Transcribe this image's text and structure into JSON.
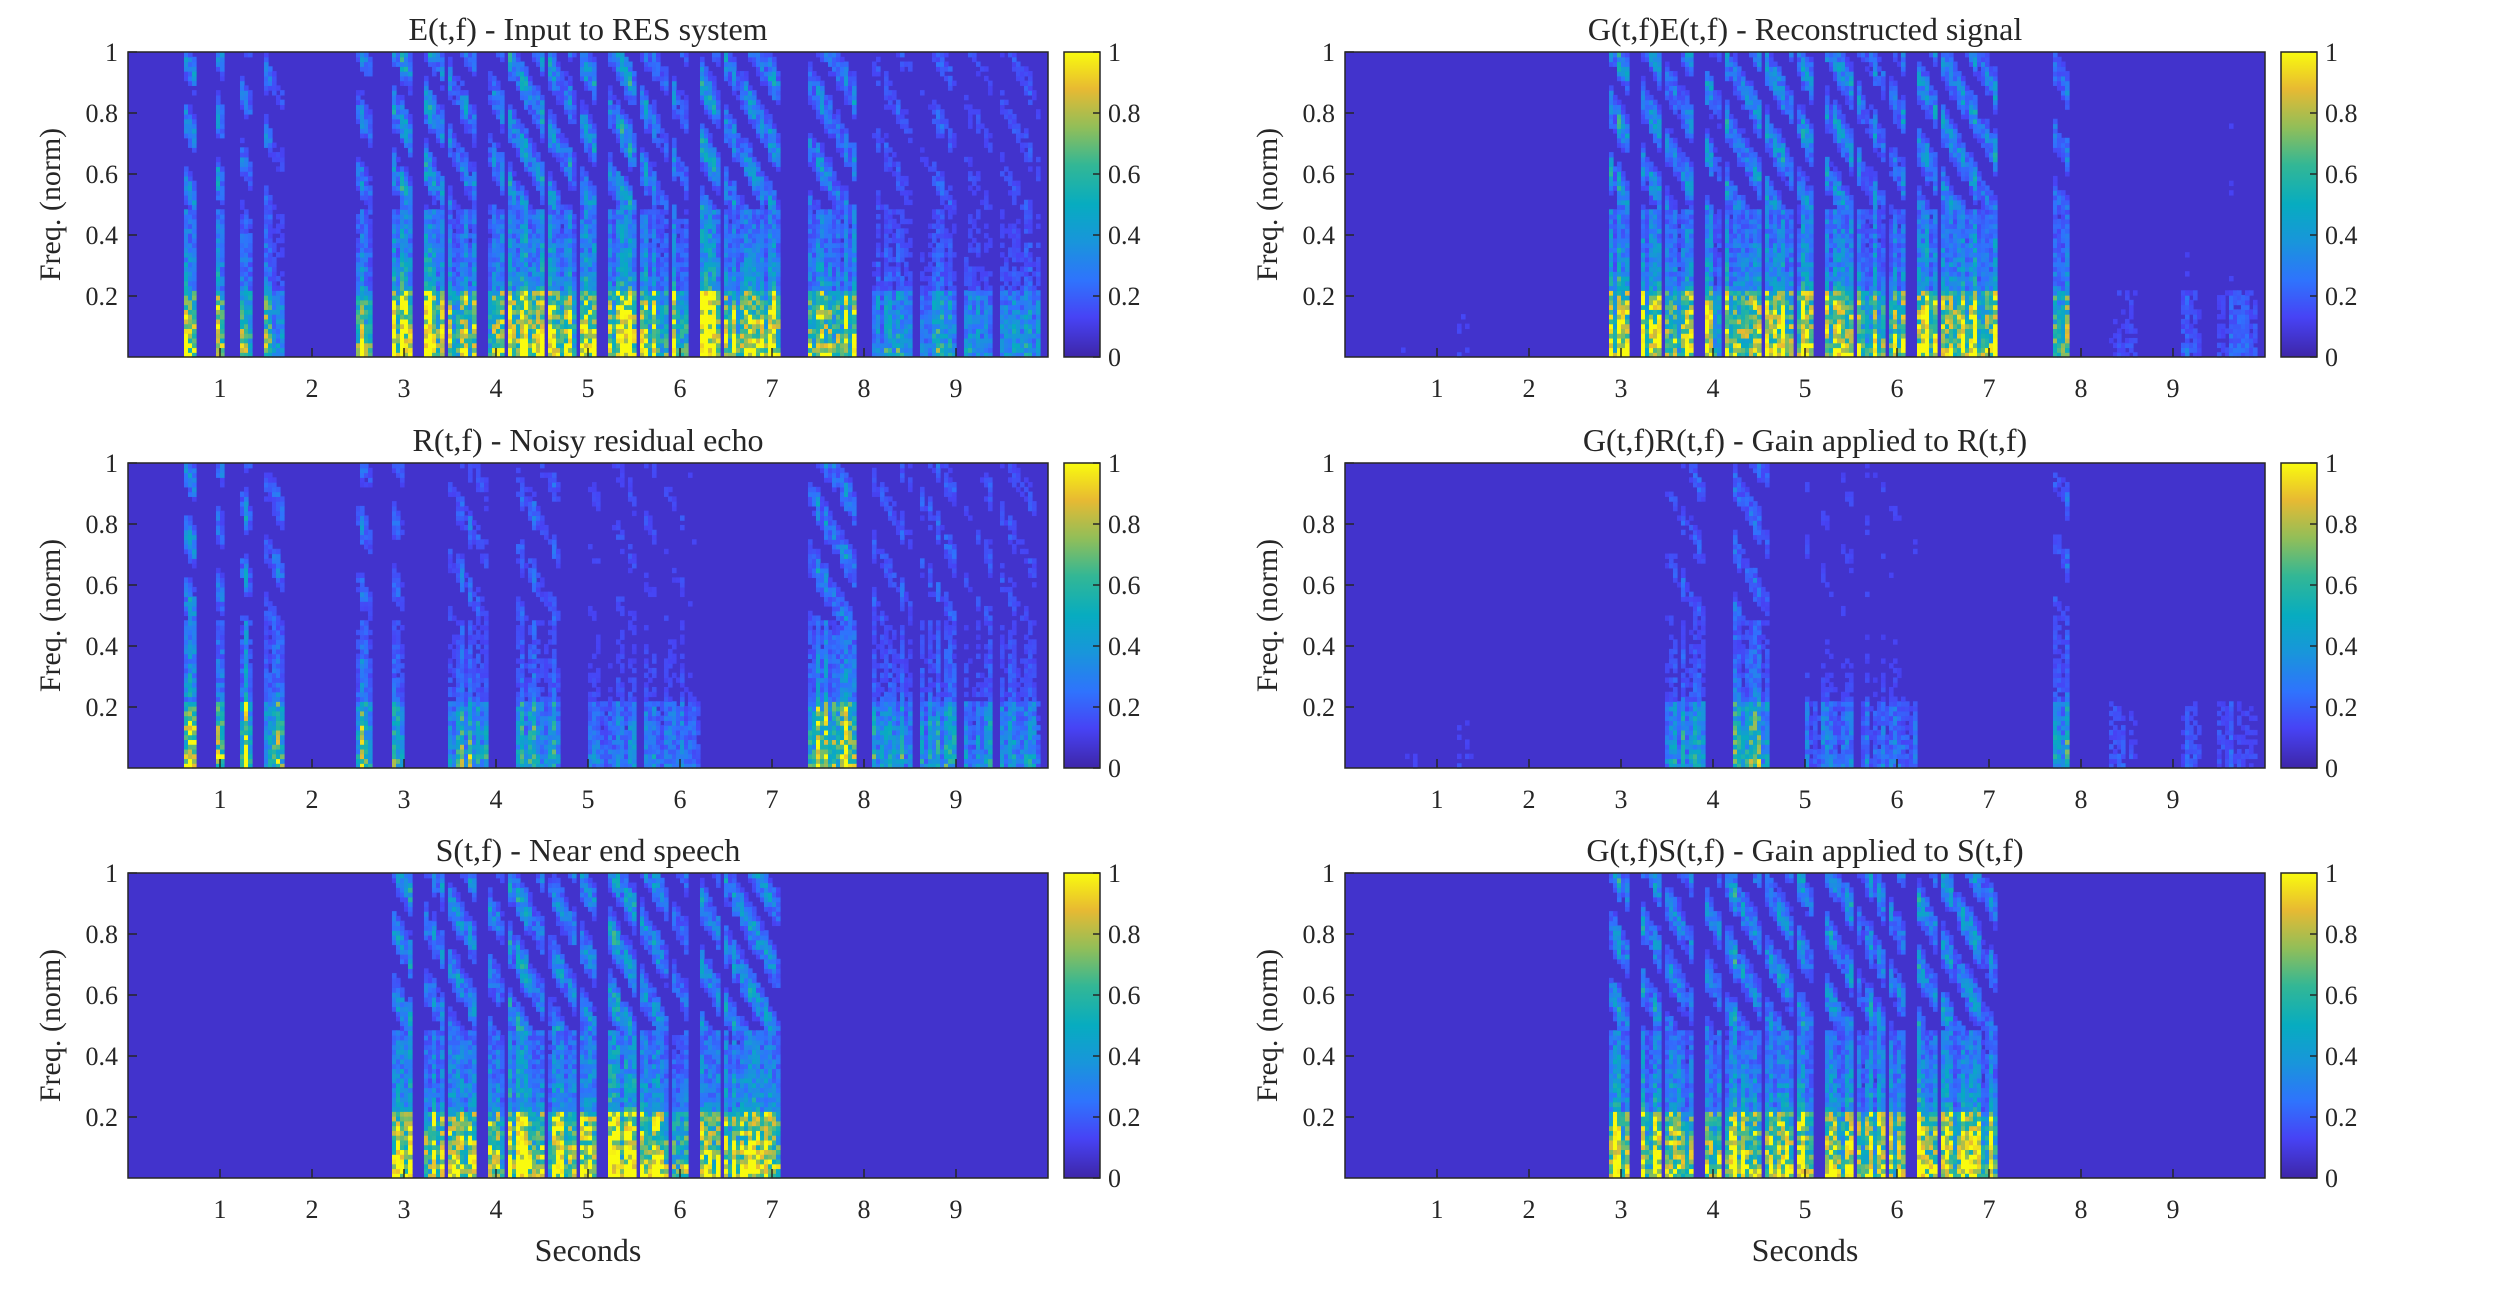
{
  "chart_data": [
    {
      "type": "heatmap",
      "title": "E(t,f) - Input to RES system",
      "ylabel": "Freq. (norm)",
      "xlabel": "",
      "xlim": [
        0,
        10
      ],
      "ylim": [
        0,
        1
      ],
      "xticks": [
        1,
        2,
        3,
        4,
        5,
        6,
        7,
        8,
        9
      ],
      "yticks": [
        0.2,
        0.4,
        0.6,
        0.8,
        1
      ],
      "colorbar": {
        "clim": [
          0,
          1
        ],
        "ticks": [
          0,
          0.2,
          0.4,
          0.6,
          0.8,
          1
        ]
      },
      "colormap": "parula",
      "active_spans": [
        {
          "x": [
            0.6,
            0.75
          ],
          "level": 0.9
        },
        {
          "x": [
            0.95,
            1.05
          ],
          "level": 0.9
        },
        {
          "x": [
            1.2,
            1.35
          ],
          "level": 0.85
        },
        {
          "x": [
            1.5,
            1.7
          ],
          "level": 0.6
        },
        {
          "x": [
            2.5,
            2.65
          ],
          "level": 0.8
        },
        {
          "x": [
            2.85,
            3.1
          ],
          "level": 1.0
        },
        {
          "x": [
            3.2,
            3.45
          ],
          "level": 1.0
        },
        {
          "x": [
            3.5,
            3.8
          ],
          "level": 0.85
        },
        {
          "x": [
            3.9,
            4.1
          ],
          "level": 0.85
        },
        {
          "x": [
            4.15,
            4.5
          ],
          "level": 1.0
        },
        {
          "x": [
            4.55,
            4.85
          ],
          "level": 0.9
        },
        {
          "x": [
            4.9,
            5.1
          ],
          "level": 1.0
        },
        {
          "x": [
            5.2,
            5.5
          ],
          "level": 1.0
        },
        {
          "x": [
            5.55,
            5.85
          ],
          "level": 0.9
        },
        {
          "x": [
            5.9,
            6.1
          ],
          "level": 0.85
        },
        {
          "x": [
            6.2,
            6.45
          ],
          "level": 1.0
        },
        {
          "x": [
            6.5,
            6.85
          ],
          "level": 0.9
        },
        {
          "x": [
            6.85,
            7.1
          ],
          "level": 0.85
        },
        {
          "x": [
            7.4,
            7.9
          ],
          "level": 0.8
        },
        {
          "x": [
            8.1,
            8.5
          ],
          "level": 0.45
        },
        {
          "x": [
            8.6,
            9.0
          ],
          "level": 0.45
        },
        {
          "x": [
            9.1,
            9.4
          ],
          "level": 0.4
        },
        {
          "x": [
            9.5,
            9.9
          ],
          "level": 0.4
        }
      ]
    },
    {
      "type": "heatmap",
      "title": "G(t,f)E(t,f) - Reconstructed signal",
      "ylabel": "Freq. (norm)",
      "xlabel": "",
      "xlim": [
        0,
        10
      ],
      "ylim": [
        0,
        1
      ],
      "xticks": [
        1,
        2,
        3,
        4,
        5,
        6,
        7,
        8,
        9
      ],
      "yticks": [
        0.2,
        0.4,
        0.6,
        0.8,
        1
      ],
      "colorbar": {
        "clim": [
          0,
          1
        ],
        "ticks": [
          0,
          0.2,
          0.4,
          0.6,
          0.8,
          1
        ]
      },
      "colormap": "parula",
      "active_spans": [
        {
          "x": [
            0.6,
            0.75
          ],
          "level": 0.1
        },
        {
          "x": [
            1.2,
            1.35
          ],
          "level": 0.1
        },
        {
          "x": [
            2.85,
            3.1
          ],
          "level": 1.0
        },
        {
          "x": [
            3.2,
            3.45
          ],
          "level": 1.0
        },
        {
          "x": [
            3.5,
            3.8
          ],
          "level": 0.8
        },
        {
          "x": [
            3.9,
            4.1
          ],
          "level": 0.8
        },
        {
          "x": [
            4.15,
            4.5
          ],
          "level": 1.0
        },
        {
          "x": [
            4.55,
            4.85
          ],
          "level": 0.9
        },
        {
          "x": [
            4.9,
            5.1
          ],
          "level": 1.0
        },
        {
          "x": [
            5.2,
            5.5
          ],
          "level": 1.0
        },
        {
          "x": [
            5.55,
            5.85
          ],
          "level": 0.85
        },
        {
          "x": [
            5.9,
            6.1
          ],
          "level": 0.8
        },
        {
          "x": [
            6.2,
            6.45
          ],
          "level": 1.0
        },
        {
          "x": [
            6.5,
            6.85
          ],
          "level": 0.9
        },
        {
          "x": [
            6.85,
            7.1
          ],
          "level": 0.85
        },
        {
          "x": [
            7.7,
            7.85
          ],
          "level": 0.7
        },
        {
          "x": [
            8.3,
            8.6
          ],
          "level": 0.15
        },
        {
          "x": [
            9.1,
            9.3
          ],
          "level": 0.2
        },
        {
          "x": [
            9.5,
            9.9
          ],
          "level": 0.2
        }
      ]
    },
    {
      "type": "heatmap",
      "title": "R(t,f) - Noisy residual echo",
      "ylabel": "Freq. (norm)",
      "xlabel": "",
      "xlim": [
        0,
        10
      ],
      "ylim": [
        0,
        1
      ],
      "xticks": [
        1,
        2,
        3,
        4,
        5,
        6,
        7,
        8,
        9
      ],
      "yticks": [
        0.2,
        0.4,
        0.6,
        0.8,
        1
      ],
      "colorbar": {
        "clim": [
          0,
          1
        ],
        "ticks": [
          0,
          0.2,
          0.4,
          0.6,
          0.8,
          1
        ]
      },
      "colormap": "parula",
      "active_spans": [
        {
          "x": [
            0.6,
            0.75
          ],
          "level": 0.9
        },
        {
          "x": [
            0.95,
            1.05
          ],
          "level": 0.9
        },
        {
          "x": [
            1.2,
            1.35
          ],
          "level": 0.85
        },
        {
          "x": [
            1.5,
            1.7
          ],
          "level": 0.6
        },
        {
          "x": [
            2.5,
            2.65
          ],
          "level": 0.8
        },
        {
          "x": [
            2.85,
            3.0
          ],
          "level": 0.45
        },
        {
          "x": [
            3.5,
            3.9
          ],
          "level": 0.55
        },
        {
          "x": [
            4.2,
            4.7
          ],
          "level": 0.55
        },
        {
          "x": [
            5.0,
            5.5
          ],
          "level": 0.35
        },
        {
          "x": [
            5.6,
            6.2
          ],
          "level": 0.3
        },
        {
          "x": [
            7.4,
            7.9
          ],
          "level": 0.8
        },
        {
          "x": [
            8.1,
            8.5
          ],
          "level": 0.45
        },
        {
          "x": [
            8.6,
            9.0
          ],
          "level": 0.45
        },
        {
          "x": [
            9.1,
            9.4
          ],
          "level": 0.4
        },
        {
          "x": [
            9.5,
            9.9
          ],
          "level": 0.4
        }
      ]
    },
    {
      "type": "heatmap",
      "title": "G(t,f)R(t,f) - Gain applied to R(t,f)",
      "ylabel": "Freq. (norm)",
      "xlabel": "",
      "xlim": [
        0,
        10
      ],
      "ylim": [
        0,
        1
      ],
      "xticks": [
        1,
        2,
        3,
        4,
        5,
        6,
        7,
        8,
        9
      ],
      "yticks": [
        0.2,
        0.4,
        0.6,
        0.8,
        1
      ],
      "colorbar": {
        "clim": [
          0,
          1
        ],
        "ticks": [
          0,
          0.2,
          0.4,
          0.6,
          0.8,
          1
        ]
      },
      "colormap": "parula",
      "active_spans": [
        {
          "x": [
            0.6,
            0.8
          ],
          "level": 0.1
        },
        {
          "x": [
            1.2,
            1.4
          ],
          "level": 0.1
        },
        {
          "x": [
            3.5,
            3.9
          ],
          "level": 0.45
        },
        {
          "x": [
            4.2,
            4.6
          ],
          "level": 0.55
        },
        {
          "x": [
            5.0,
            5.5
          ],
          "level": 0.3
        },
        {
          "x": [
            5.6,
            6.2
          ],
          "level": 0.25
        },
        {
          "x": [
            7.7,
            7.85
          ],
          "level": 0.6
        },
        {
          "x": [
            8.3,
            8.6
          ],
          "level": 0.15
        },
        {
          "x": [
            9.1,
            9.3
          ],
          "level": 0.2
        },
        {
          "x": [
            9.5,
            9.9
          ],
          "level": 0.2
        }
      ]
    },
    {
      "type": "heatmap",
      "title": "S(t,f) - Near end speech",
      "ylabel": "Freq. (norm)",
      "xlabel": "Seconds",
      "xlim": [
        0,
        10
      ],
      "ylim": [
        0,
        1
      ],
      "xticks": [
        1,
        2,
        3,
        4,
        5,
        6,
        7,
        8,
        9
      ],
      "yticks": [
        0.2,
        0.4,
        0.6,
        0.8,
        1
      ],
      "colorbar": {
        "clim": [
          0,
          1
        ],
        "ticks": [
          0,
          0.2,
          0.4,
          0.6,
          0.8,
          1
        ]
      },
      "colormap": "parula",
      "active_spans": [
        {
          "x": [
            2.85,
            3.1
          ],
          "level": 1.0
        },
        {
          "x": [
            3.2,
            3.45
          ],
          "level": 1.0
        },
        {
          "x": [
            3.5,
            3.8
          ],
          "level": 0.85
        },
        {
          "x": [
            3.9,
            4.1
          ],
          "level": 0.85
        },
        {
          "x": [
            4.15,
            4.5
          ],
          "level": 1.0
        },
        {
          "x": [
            4.55,
            4.85
          ],
          "level": 0.9
        },
        {
          "x": [
            4.9,
            5.1
          ],
          "level": 1.0
        },
        {
          "x": [
            5.2,
            5.5
          ],
          "level": 1.0
        },
        {
          "x": [
            5.55,
            5.85
          ],
          "level": 0.9
        },
        {
          "x": [
            5.9,
            6.1
          ],
          "level": 0.85
        },
        {
          "x": [
            6.2,
            6.45
          ],
          "level": 1.0
        },
        {
          "x": [
            6.5,
            6.85
          ],
          "level": 0.9
        },
        {
          "x": [
            6.85,
            7.1
          ],
          "level": 0.85
        }
      ]
    },
    {
      "type": "heatmap",
      "title": "G(t,f)S(t,f) - Gain applied to S(t,f)",
      "ylabel": "Freq. (norm)",
      "xlabel": "Seconds",
      "xlim": [
        0,
        10
      ],
      "ylim": [
        0,
        1
      ],
      "xticks": [
        1,
        2,
        3,
        4,
        5,
        6,
        7,
        8,
        9
      ],
      "yticks": [
        0.2,
        0.4,
        0.6,
        0.8,
        1
      ],
      "colorbar": {
        "clim": [
          0,
          1
        ],
        "ticks": [
          0,
          0.2,
          0.4,
          0.6,
          0.8,
          1
        ]
      },
      "colormap": "parula",
      "active_spans": [
        {
          "x": [
            2.85,
            3.1
          ],
          "level": 1.0
        },
        {
          "x": [
            3.2,
            3.45
          ],
          "level": 1.0
        },
        {
          "x": [
            3.5,
            3.8
          ],
          "level": 0.8
        },
        {
          "x": [
            3.9,
            4.1
          ],
          "level": 0.8
        },
        {
          "x": [
            4.15,
            4.5
          ],
          "level": 1.0
        },
        {
          "x": [
            4.55,
            4.85
          ],
          "level": 0.9
        },
        {
          "x": [
            4.9,
            5.1
          ],
          "level": 1.0
        },
        {
          "x": [
            5.2,
            5.5
          ],
          "level": 1.0
        },
        {
          "x": [
            5.55,
            5.85
          ],
          "level": 0.85
        },
        {
          "x": [
            5.9,
            6.1
          ],
          "level": 0.8
        },
        {
          "x": [
            6.2,
            6.45
          ],
          "level": 1.0
        },
        {
          "x": [
            6.5,
            6.85
          ],
          "level": 0.9
        },
        {
          "x": [
            6.85,
            7.1
          ],
          "level": 0.85
        }
      ]
    }
  ]
}
